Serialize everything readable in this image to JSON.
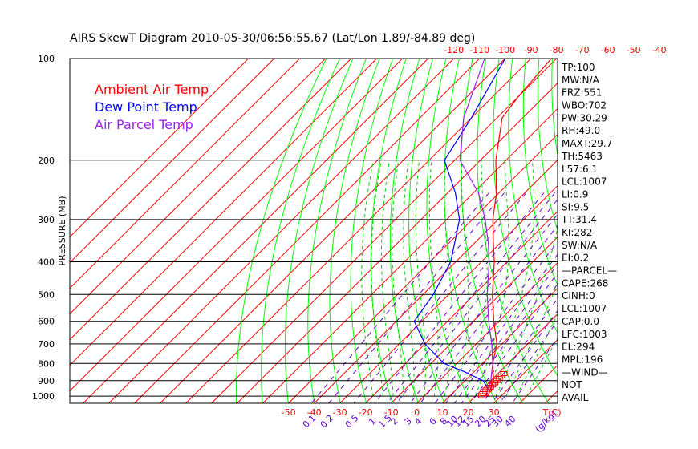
{
  "chart_data": {
    "type": "skewt",
    "title": "AIRS SkewT Diagram 2010-05-30/06:56:55.67 (Lat/Lon 1.89/-84.89 deg)",
    "ylabel": "PRESSURE (MB)",
    "pressure_ticks": [
      "100",
      "200",
      "300",
      "400",
      "500",
      "600",
      "700",
      "800",
      "900",
      "1000"
    ],
    "pressure_levels": [
      100,
      200,
      300,
      400,
      500,
      600,
      700,
      800,
      900,
      1000
    ],
    "top_temp_ticks": [
      "-120",
      "-110",
      "-100",
      "-90",
      "-80",
      "-70",
      "-60",
      "-50",
      "-40"
    ],
    "bottom_temp_ticks": [
      "-50",
      "-40",
      "-30",
      "-20",
      "-10",
      "0",
      "10",
      "20",
      "30",
      "T(C)"
    ],
    "mixing_ratio_ticks": [
      "0.1",
      "0.2",
      "0.5",
      "1",
      "1.5",
      "2",
      "3",
      "4",
      "6",
      "8",
      "10",
      "12",
      "15",
      "20",
      "25",
      "30",
      "40",
      "(g/kg)"
    ],
    "legend": [
      {
        "name": "Ambient Air Temp",
        "color": "#ff0000"
      },
      {
        "name": "Dew Point Temp",
        "color": "#0000ff"
      },
      {
        "name": "Air Parcel Temp",
        "color": "#a020f0"
      }
    ],
    "series": [
      {
        "name": "Ambient Air Temp",
        "color": "#ff0000",
        "points": [
          [
            100,
            -82
          ],
          [
            130,
            -80
          ],
          [
            150,
            -78
          ],
          [
            200,
            -64
          ],
          [
            250,
            -51
          ],
          [
            300,
            -42
          ],
          [
            350,
            -33
          ],
          [
            400,
            -25
          ],
          [
            500,
            -13
          ],
          [
            600,
            -2
          ],
          [
            700,
            8
          ],
          [
            800,
            14
          ],
          [
            900,
            21
          ],
          [
            950,
            23
          ],
          [
            1000,
            25
          ]
        ]
      },
      {
        "name": "Dew Point Temp",
        "color": "#0000ff",
        "points": [
          [
            100,
            -100
          ],
          [
            150,
            -90
          ],
          [
            200,
            -84
          ],
          [
            250,
            -67
          ],
          [
            300,
            -55
          ],
          [
            350,
            -48
          ],
          [
            400,
            -42
          ],
          [
            500,
            -36
          ],
          [
            600,
            -33
          ],
          [
            700,
            -20
          ],
          [
            800,
            -5
          ],
          [
            850,
            7
          ],
          [
            900,
            17
          ],
          [
            950,
            22
          ],
          [
            1000,
            24
          ]
        ]
      },
      {
        "name": "Air Parcel Temp",
        "color": "#a020f0",
        "points": [
          [
            100,
            -108
          ],
          [
            150,
            -93
          ],
          [
            200,
            -78
          ],
          [
            250,
            -58
          ],
          [
            300,
            -45
          ],
          [
            350,
            -35
          ],
          [
            400,
            -27
          ],
          [
            500,
            -15
          ],
          [
            600,
            -4
          ],
          [
            700,
            6
          ],
          [
            800,
            14
          ],
          [
            900,
            20
          ],
          [
            1000,
            24
          ]
        ]
      }
    ],
    "grid": true
  },
  "stats": [
    "TP:100",
    "MW:N/A",
    "FRZ:551",
    "WBO:702",
    "PW:30.29",
    "RH:49.0",
    "MAXT:29.7",
    "TH:5463",
    "L57:6.1",
    "LCL:1007",
    "LI:0.9",
    "SI:9.5",
    "TT:31.4",
    "KI:282",
    "SW:N/A",
    "EI:0.2",
    "—PARCEL—",
    "CAPE:268",
    "CINH:0",
    "LCL:1007",
    "CAP:0.0",
    "LFC:1003",
    "EL:294",
    "MPL:196",
    "—WIND—",
    "NOT",
    "AVAIL"
  ],
  "colors": {
    "isotherm": "#ff0000",
    "dry_adiabat": "#00ff00",
    "moist_adiabat": "#00cc00",
    "mixing_ratio": "#6600cc",
    "isobar": "#000000",
    "wind_barb": "#ff0000"
  }
}
